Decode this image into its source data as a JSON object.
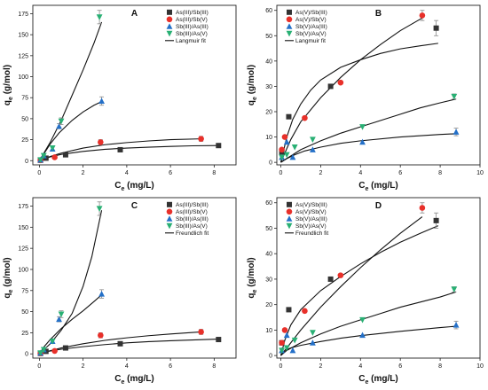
{
  "figure": {
    "background": "#ffffff"
  },
  "chart_data": [
    {
      "panel": "A",
      "type": "scatter",
      "title": "A",
      "xlabel_main": "C",
      "xlabel_sub": "e",
      "xlabel_unit": " (mg/L)",
      "ylabel_main": "q",
      "ylabel_sub": "e",
      "ylabel_unit": " (g/mol)",
      "xlim": [
        -0.3,
        9
      ],
      "ylim": [
        -5,
        185
      ],
      "xticks": [
        0,
        2,
        4,
        6,
        8
      ],
      "yticks": [
        0,
        25,
        50,
        75,
        100,
        125,
        150,
        175
      ],
      "legend_position": "top-right",
      "fit_label": "Langmuir fit",
      "series": [
        {
          "name": "As(III)/Sb(III)",
          "marker": "square",
          "color": "#333333",
          "x": [
            0.05,
            0.3,
            1.2,
            3.7,
            8.2
          ],
          "y": [
            0.5,
            3,
            7,
            13,
            18
          ],
          "err": [
            0,
            0,
            0,
            0,
            1
          ],
          "fit": [
            [
              0,
              0
            ],
            [
              0.5,
              4.5
            ],
            [
              1,
              7.5
            ],
            [
              2,
              11
            ],
            [
              3,
              13.5
            ],
            [
              4,
              15
            ],
            [
              5,
              16
            ],
            [
              6,
              17
            ],
            [
              7,
              17.7
            ],
            [
              8.2,
              18
            ]
          ]
        },
        {
          "name": "As(III)/Sb(V)",
          "marker": "circle",
          "color": "#e8302a",
          "x": [
            0.05,
            0.7,
            2.8,
            7.4
          ],
          "y": [
            0.5,
            4,
            22,
            26
          ],
          "err": [
            0,
            0,
            3,
            3
          ],
          "fit": [
            [
              0,
              0
            ],
            [
              0.5,
              5
            ],
            [
              1,
              9
            ],
            [
              2,
              15
            ],
            [
              3,
              19
            ],
            [
              4,
              21.5
            ],
            [
              5,
              23.5
            ],
            [
              6,
              25
            ],
            [
              7.4,
              26
            ]
          ]
        },
        {
          "name": "Sb(III)/As(III)",
          "marker": "triangle-up",
          "color": "#2470c8",
          "x": [
            0.05,
            0.2,
            0.6,
            0.9,
            2.85
          ],
          "y": [
            1,
            6,
            14,
            41,
            71
          ],
          "err": [
            0,
            0,
            0,
            3,
            5
          ],
          "fit": [
            [
              0,
              0
            ],
            [
              0.25,
              10
            ],
            [
              0.5,
              20
            ],
            [
              0.9,
              33
            ],
            [
              1.5,
              48
            ],
            [
              2,
              58
            ],
            [
              2.5,
              66
            ],
            [
              2.9,
              71
            ]
          ]
        },
        {
          "name": "Sb(III)/As(V)",
          "marker": "triangle-down",
          "color": "#29b074",
          "x": [
            0.05,
            0.2,
            0.6,
            1.0,
            2.75
          ],
          "y": [
            1,
            6,
            15,
            47,
            171
          ],
          "err": [
            0,
            0,
            0,
            4,
            8
          ],
          "fit": [
            [
              0,
              0
            ],
            [
              0.5,
              22
            ],
            [
              1,
              48
            ],
            [
              1.5,
              78
            ],
            [
              2,
              108
            ],
            [
              2.5,
              140
            ],
            [
              2.85,
              165
            ]
          ]
        }
      ]
    },
    {
      "panel": "B",
      "type": "scatter",
      "title": "B",
      "xlabel_main": "C",
      "xlabel_sub": "e",
      "xlabel_unit": " (mg/L)",
      "ylabel_main": "q",
      "ylabel_sub": "e",
      "ylabel_unit": " (g/mol)",
      "xlim": [
        -0.2,
        10
      ],
      "ylim": [
        -1,
        62
      ],
      "xticks": [
        0,
        2,
        4,
        6,
        8,
        10
      ],
      "yticks": [
        0,
        10,
        20,
        30,
        40,
        50,
        60
      ],
      "legend_position": "top-left",
      "fit_label": "Langmuir fit",
      "series": [
        {
          "name": "As(V)/Sb(III)",
          "marker": "square",
          "color": "#333333",
          "x": [
            0.05,
            0.4,
            2.5,
            7.8
          ],
          "y": [
            4,
            18,
            30,
            53
          ],
          "err": [
            0,
            0,
            0,
            3
          ],
          "fit": [
            [
              0,
              0
            ],
            [
              0.3,
              10
            ],
            [
              0.6,
              17
            ],
            [
              1,
              23
            ],
            [
              1.5,
              28.5
            ],
            [
              2,
              32.5
            ],
            [
              3,
              37.5
            ],
            [
              4,
              40.5
            ],
            [
              5,
              43
            ],
            [
              6,
              44.8
            ],
            [
              7,
              46
            ],
            [
              7.9,
              47
            ]
          ]
        },
        {
          "name": "As(V)/Sb(V)",
          "marker": "circle",
          "color": "#e8302a",
          "x": [
            0.05,
            0.2,
            1.2,
            3.0,
            7.1
          ],
          "y": [
            5,
            10,
            17.5,
            31.5,
            58
          ],
          "err": [
            0,
            0,
            0,
            0,
            2
          ],
          "fit": [
            [
              0,
              0
            ],
            [
              0.5,
              9
            ],
            [
              1,
              16
            ],
            [
              2,
              25.5
            ],
            [
              3,
              33.5
            ],
            [
              4,
              40.5
            ],
            [
              5,
              46.5
            ],
            [
              6,
              52
            ],
            [
              7.1,
              57
            ]
          ]
        },
        {
          "name": "Sb(V)/As(III)",
          "marker": "triangle-up",
          "color": "#2470c8",
          "x": [
            0.05,
            0.3,
            0.6,
            1.6,
            4.1,
            8.8
          ],
          "y": [
            2,
            8,
            2,
            5,
            8,
            12
          ],
          "err": [
            0,
            0,
            0,
            0,
            0,
            1.5
          ],
          "fit": [
            [
              0,
              0
            ],
            [
              0.3,
              1.5
            ],
            [
              0.7,
              3
            ],
            [
              1.2,
              4.5
            ],
            [
              2,
              6
            ],
            [
              3,
              7.5
            ],
            [
              4,
              8.5
            ],
            [
              6,
              10
            ],
            [
              8,
              11
            ],
            [
              8.8,
              11.3
            ]
          ]
        },
        {
          "name": "Sb(V)/As(V)",
          "marker": "triangle-down",
          "color": "#29b074",
          "x": [
            0.05,
            0.3,
            0.7,
            1.6,
            4.1,
            8.7
          ],
          "y": [
            2,
            3,
            6,
            9,
            14,
            26
          ],
          "err": [
            0,
            0,
            0,
            0,
            0,
            1
          ],
          "fit": [
            [
              0,
              0
            ],
            [
              0.5,
              2.5
            ],
            [
              1,
              5
            ],
            [
              2,
              8.5
            ],
            [
              3,
              11.5
            ],
            [
              4,
              14
            ],
            [
              5,
              16.5
            ],
            [
              6,
              19
            ],
            [
              7,
              21.5
            ],
            [
              8,
              23.5
            ],
            [
              8.8,
              25
            ]
          ]
        }
      ]
    },
    {
      "panel": "C",
      "type": "scatter",
      "title": "C",
      "xlabel_main": "C",
      "xlabel_sub": "e",
      "xlabel_unit": " (mg/L)",
      "ylabel_main": "q",
      "ylabel_sub": "e",
      "ylabel_unit": " (g/mol)",
      "xlim": [
        -0.3,
        9
      ],
      "ylim": [
        -5,
        185
      ],
      "xticks": [
        0,
        2,
        4,
        6,
        8
      ],
      "yticks": [
        0,
        25,
        50,
        75,
        100,
        125,
        150,
        175
      ],
      "legend_position": "top-right",
      "fit_label": "Freundlich fit",
      "series": [
        {
          "name": "As(III)/Sb(III)",
          "marker": "square",
          "color": "#333333",
          "x": [
            0.05,
            0.3,
            1.2,
            3.7,
            8.2
          ],
          "y": [
            0.5,
            3,
            7,
            12,
            17
          ],
          "err": [
            0,
            0,
            0,
            0,
            1
          ],
          "fit": [
            [
              0,
              0
            ],
            [
              0.3,
              2.5
            ],
            [
              1,
              5.5
            ],
            [
              2,
              8.5
            ],
            [
              3,
              11
            ],
            [
              4,
              13
            ],
            [
              5,
              14.5
            ],
            [
              6,
              15.5
            ],
            [
              7,
              16.5
            ],
            [
              8.2,
              17.5
            ]
          ]
        },
        {
          "name": "As(III)/Sb(V)",
          "marker": "circle",
          "color": "#e8302a",
          "x": [
            0.05,
            0.7,
            2.8,
            7.4
          ],
          "y": [
            0.5,
            3.5,
            22,
            26
          ],
          "err": [
            0,
            0,
            3,
            3
          ],
          "fit": [
            [
              0,
              0
            ],
            [
              0.3,
              2.5
            ],
            [
              1,
              7
            ],
            [
              2,
              12
            ],
            [
              3,
              16
            ],
            [
              4,
              19
            ],
            [
              5,
              21.5
            ],
            [
              6,
              23.5
            ],
            [
              7.4,
              26
            ]
          ]
        },
        {
          "name": "Sb(III)/As(III)",
          "marker": "triangle-up",
          "color": "#2470c8",
          "x": [
            0.05,
            0.2,
            0.6,
            0.9,
            2.85
          ],
          "y": [
            1,
            5,
            15,
            41,
            71
          ],
          "err": [
            0,
            0,
            0,
            3,
            5
          ],
          "fit": [
            [
              0,
              0
            ],
            [
              0.2,
              8
            ],
            [
              0.5,
              17
            ],
            [
              1,
              30
            ],
            [
              1.5,
              41
            ],
            [
              2,
              51
            ],
            [
              2.5,
              62
            ],
            [
              2.9,
              71
            ]
          ]
        },
        {
          "name": "Sb(III)/As(V)",
          "marker": "triangle-down",
          "color": "#29b074",
          "x": [
            0.05,
            0.2,
            0.6,
            1.0,
            2.75
          ],
          "y": [
            1,
            5,
            15,
            47,
            172
          ],
          "err": [
            0,
            0,
            0,
            4,
            8
          ],
          "fit": [
            [
              0,
              0
            ],
            [
              0.5,
              12
            ],
            [
              1,
              28
            ],
            [
              1.5,
              48
            ],
            [
              2,
              80
            ],
            [
              2.4,
              115
            ],
            [
              2.85,
              170
            ]
          ]
        }
      ]
    },
    {
      "panel": "D",
      "type": "scatter",
      "title": "D",
      "xlabel_main": "C",
      "xlabel_sub": "e",
      "xlabel_unit": " (mg/L)",
      "ylabel_main": "q",
      "ylabel_sub": "e",
      "ylabel_unit": " (g/mol)",
      "xlim": [
        -0.2,
        10
      ],
      "ylim": [
        -1,
        62
      ],
      "xticks": [
        0,
        2,
        4,
        6,
        8,
        10
      ],
      "yticks": [
        0,
        10,
        20,
        30,
        40,
        50,
        60
      ],
      "legend_position": "top-left",
      "fit_label": "Freundlich fit",
      "series": [
        {
          "name": "As(V)/Sb(III)",
          "marker": "square",
          "color": "#333333",
          "x": [
            0.05,
            0.4,
            2.5,
            7.8
          ],
          "y": [
            5,
            18,
            30,
            53
          ],
          "err": [
            0,
            0,
            0,
            3
          ],
          "fit": [
            [
              0,
              0
            ],
            [
              0.2,
              6
            ],
            [
              0.5,
              12
            ],
            [
              1,
              18
            ],
            [
              2,
              25.5
            ],
            [
              3,
              31
            ],
            [
              4,
              36
            ],
            [
              5,
              40.5
            ],
            [
              6,
              44.5
            ],
            [
              7,
              48
            ],
            [
              7.9,
              51
            ]
          ]
        },
        {
          "name": "As(V)/Sb(V)",
          "marker": "circle",
          "color": "#e8302a",
          "x": [
            0.05,
            0.2,
            1.2,
            3.0,
            7.1
          ],
          "y": [
            5,
            10,
            17.5,
            31.5,
            58
          ],
          "err": [
            0,
            0,
            0,
            0,
            2
          ],
          "fit": [
            [
              0,
              0
            ],
            [
              0.3,
              3
            ],
            [
              1,
              10
            ],
            [
              2,
              19
            ],
            [
              3,
              27
            ],
            [
              4,
              34.5
            ],
            [
              5,
              41.5
            ],
            [
              6,
              48
            ],
            [
              7.1,
              54.5
            ]
          ]
        },
        {
          "name": "Sb(V)/As(III)",
          "marker": "triangle-up",
          "color": "#2470c8",
          "x": [
            0.05,
            0.3,
            0.6,
            1.6,
            4.1,
            8.8
          ],
          "y": [
            2,
            8,
            2,
            5,
            8,
            12
          ],
          "err": [
            0,
            0,
            0,
            0,
            0,
            1.5
          ],
          "fit": [
            [
              0,
              0
            ],
            [
              0.2,
              2
            ],
            [
              0.5,
              3
            ],
            [
              1,
              4
            ],
            [
              2,
              5.5
            ],
            [
              3,
              6.8
            ],
            [
              4,
              7.8
            ],
            [
              6,
              9.5
            ],
            [
              8,
              11
            ],
            [
              8.8,
              11.5
            ]
          ]
        },
        {
          "name": "Sb(V)/As(V)",
          "marker": "triangle-down",
          "color": "#29b074",
          "x": [
            0.05,
            0.3,
            0.7,
            1.6,
            4.1,
            8.7
          ],
          "y": [
            2,
            3,
            6,
            9,
            14,
            26
          ],
          "err": [
            0,
            0,
            0,
            0,
            0,
            1
          ],
          "fit": [
            [
              0,
              0
            ],
            [
              0.3,
              2
            ],
            [
              1,
              5
            ],
            [
              2,
              8.5
            ],
            [
              3,
              11.5
            ],
            [
              4,
              14
            ],
            [
              5,
              16.5
            ],
            [
              6,
              19
            ],
            [
              7,
              21
            ],
            [
              8,
              23
            ],
            [
              8.8,
              25
            ]
          ]
        }
      ]
    }
  ]
}
